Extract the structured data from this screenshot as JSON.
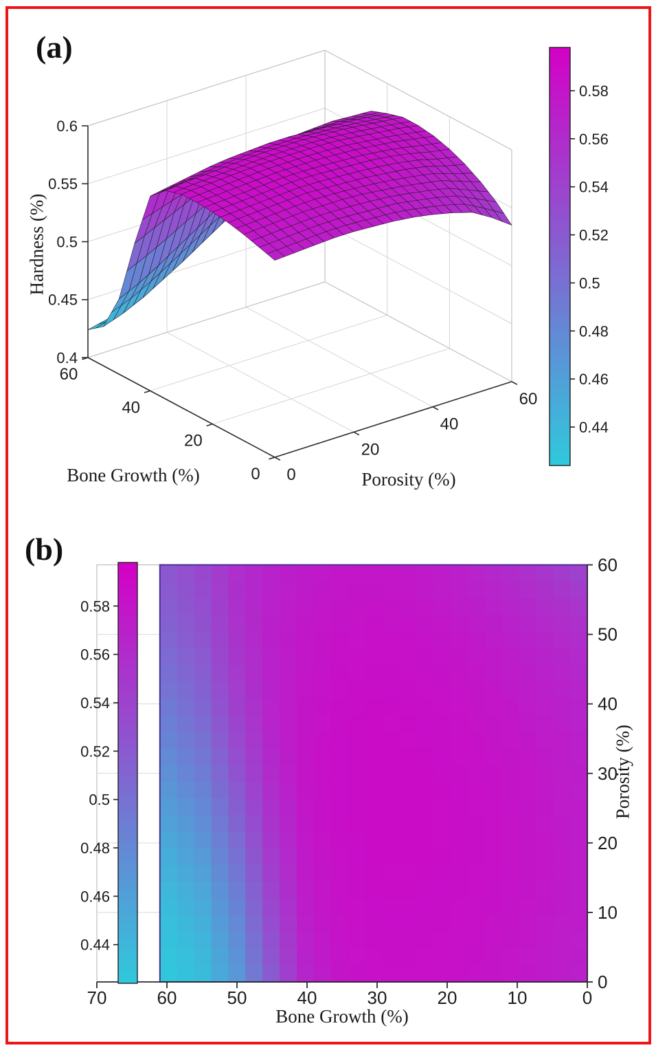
{
  "figure": {
    "background": "#ffffff",
    "border_color": "#ee1515"
  },
  "panel_a": {
    "label": "(a)",
    "zlabel": "Hardness (%)",
    "bone_growth_label": "Bone Growth (%)",
    "porosity_label": "Porosity (%)",
    "z_ticks": [
      "0.4",
      "0.45",
      "0.5",
      "0.55",
      "0.6"
    ],
    "bone_growth_ticks": [
      "0",
      "20",
      "40",
      "60"
    ],
    "porosity_ticks": [
      "0",
      "20",
      "40",
      "60"
    ],
    "colorbar_ticks": [
      "0.44",
      "0.46",
      "0.48",
      "0.5",
      "0.52",
      "0.54",
      "0.56",
      "0.58"
    ]
  },
  "panel_b": {
    "label": "(b)",
    "xlabel": "Bone Growth (%)",
    "ylabel_right": "Porosity (%)",
    "x_ticks": [
      "70",
      "60",
      "50",
      "40",
      "30",
      "20",
      "10",
      "0"
    ],
    "y_ticks_right": [
      "0",
      "10",
      "20",
      "30",
      "40",
      "50",
      "60"
    ],
    "colorbar_ticks": [
      "0.44",
      "0.46",
      "0.48",
      "0.5",
      "0.52",
      "0.54",
      "0.56",
      "0.58"
    ]
  },
  "colors": {
    "colormap_low_cyan": "#2fc9dc",
    "colormap_high_magenta": "#d400c6",
    "mesh_edge": "#1c1c1c",
    "axis_dark": "#2b2b2b",
    "grid_light": "#d5d5d5",
    "box_edge": "#c2c2c2",
    "heatmap_border": "#4a2f96"
  },
  "chart_data": [
    {
      "type": "surface",
      "title": "",
      "xlabel": "Porosity (%)",
      "ylabel": "Bone Growth (%)",
      "zlabel": "Hardness (%)",
      "bone_growth": [
        0,
        5,
        10,
        15,
        20,
        25,
        30,
        35,
        40,
        45,
        50,
        55,
        60
      ],
      "porosity": [
        0,
        5,
        10,
        15,
        20,
        25,
        30,
        35,
        40,
        45,
        50,
        55,
        60
      ],
      "zlim": [
        0.4,
        0.6
      ],
      "clim": [
        0.424,
        0.598
      ],
      "colormap": "cool (cyan to magenta)",
      "colorbar_ticks": [
        0.44,
        0.46,
        0.48,
        0.5,
        0.52,
        0.54,
        0.56,
        0.58
      ],
      "hardness_grid_rows_porosity_cols_bone_growth": [
        [
          0.57,
          0.574,
          0.578,
          0.581,
          0.583,
          0.584,
          0.584,
          0.58,
          0.568,
          0.52,
          0.465,
          0.434,
          0.424
        ],
        [
          0.571,
          0.575,
          0.579,
          0.582,
          0.584,
          0.585,
          0.585,
          0.582,
          0.571,
          0.528,
          0.473,
          0.44,
          0.428
        ],
        [
          0.572,
          0.576,
          0.58,
          0.583,
          0.585,
          0.586,
          0.586,
          0.583,
          0.574,
          0.536,
          0.483,
          0.448,
          0.434
        ],
        [
          0.573,
          0.577,
          0.581,
          0.584,
          0.586,
          0.587,
          0.587,
          0.584,
          0.577,
          0.544,
          0.494,
          0.458,
          0.442
        ],
        [
          0.573,
          0.577,
          0.581,
          0.585,
          0.587,
          0.588,
          0.588,
          0.585,
          0.579,
          0.551,
          0.505,
          0.468,
          0.452
        ],
        [
          0.572,
          0.576,
          0.581,
          0.584,
          0.587,
          0.588,
          0.588,
          0.586,
          0.58,
          0.557,
          0.516,
          0.479,
          0.462
        ],
        [
          0.571,
          0.575,
          0.58,
          0.583,
          0.586,
          0.588,
          0.588,
          0.586,
          0.581,
          0.562,
          0.526,
          0.49,
          0.473
        ],
        [
          0.569,
          0.574,
          0.578,
          0.582,
          0.585,
          0.587,
          0.588,
          0.586,
          0.581,
          0.566,
          0.535,
          0.5,
          0.483
        ],
        [
          0.566,
          0.571,
          0.576,
          0.58,
          0.584,
          0.586,
          0.587,
          0.585,
          0.58,
          0.569,
          0.543,
          0.51,
          0.493
        ],
        [
          0.562,
          0.568,
          0.573,
          0.578,
          0.582,
          0.584,
          0.585,
          0.584,
          0.579,
          0.57,
          0.549,
          0.518,
          0.502
        ],
        [
          0.557,
          0.564,
          0.57,
          0.575,
          0.579,
          0.582,
          0.583,
          0.582,
          0.578,
          0.571,
          0.554,
          0.525,
          0.511
        ],
        [
          0.547,
          0.556,
          0.564,
          0.57,
          0.575,
          0.579,
          0.581,
          0.58,
          0.576,
          0.57,
          0.557,
          0.531,
          0.518
        ],
        [
          0.535,
          0.548,
          0.558,
          0.566,
          0.572,
          0.576,
          0.578,
          0.578,
          0.574,
          0.569,
          0.558,
          0.536,
          0.524
        ]
      ]
    },
    {
      "type": "heatmap",
      "title": "",
      "xlabel": "Bone Growth (%)",
      "ylabel": "Porosity (%)",
      "x_range_reversed": [
        70,
        0
      ],
      "y_range": [
        0,
        60
      ],
      "clim": [
        0.424,
        0.598
      ],
      "colormap": "cool (cyan to magenta)",
      "colorbar_ticks": [
        0.44,
        0.46,
        0.48,
        0.5,
        0.52,
        0.54,
        0.56,
        0.58
      ],
      "x_bone_growth": [
        0,
        5,
        10,
        15,
        20,
        25,
        30,
        35,
        40,
        45,
        50,
        55,
        60
      ],
      "y_porosity": [
        0,
        5,
        10,
        15,
        20,
        25,
        30,
        35,
        40,
        45,
        50,
        55,
        60
      ],
      "values_rows_porosity_cols_bone_growth": [
        [
          0.57,
          0.574,
          0.578,
          0.581,
          0.583,
          0.584,
          0.584,
          0.58,
          0.568,
          0.52,
          0.465,
          0.434,
          0.424
        ],
        [
          0.571,
          0.575,
          0.579,
          0.582,
          0.584,
          0.585,
          0.585,
          0.582,
          0.571,
          0.528,
          0.473,
          0.44,
          0.428
        ],
        [
          0.572,
          0.576,
          0.58,
          0.583,
          0.585,
          0.586,
          0.586,
          0.583,
          0.574,
          0.536,
          0.483,
          0.448,
          0.434
        ],
        [
          0.573,
          0.577,
          0.581,
          0.584,
          0.586,
          0.587,
          0.587,
          0.584,
          0.577,
          0.544,
          0.494,
          0.458,
          0.442
        ],
        [
          0.573,
          0.577,
          0.581,
          0.585,
          0.587,
          0.588,
          0.588,
          0.585,
          0.579,
          0.551,
          0.505,
          0.468,
          0.452
        ],
        [
          0.572,
          0.576,
          0.581,
          0.584,
          0.587,
          0.588,
          0.588,
          0.586,
          0.58,
          0.557,
          0.516,
          0.479,
          0.462
        ],
        [
          0.571,
          0.575,
          0.58,
          0.583,
          0.586,
          0.588,
          0.588,
          0.586,
          0.581,
          0.562,
          0.526,
          0.49,
          0.473
        ],
        [
          0.569,
          0.574,
          0.578,
          0.582,
          0.585,
          0.587,
          0.588,
          0.586,
          0.581,
          0.566,
          0.535,
          0.5,
          0.483
        ],
        [
          0.566,
          0.571,
          0.576,
          0.58,
          0.584,
          0.586,
          0.587,
          0.585,
          0.58,
          0.569,
          0.543,
          0.51,
          0.493
        ],
        [
          0.562,
          0.568,
          0.573,
          0.578,
          0.582,
          0.584,
          0.585,
          0.584,
          0.579,
          0.57,
          0.549,
          0.518,
          0.502
        ],
        [
          0.557,
          0.564,
          0.57,
          0.575,
          0.579,
          0.582,
          0.583,
          0.582,
          0.578,
          0.571,
          0.554,
          0.525,
          0.511
        ],
        [
          0.547,
          0.556,
          0.564,
          0.57,
          0.575,
          0.579,
          0.581,
          0.58,
          0.576,
          0.57,
          0.557,
          0.531,
          0.518
        ],
        [
          0.535,
          0.548,
          0.558,
          0.566,
          0.572,
          0.576,
          0.578,
          0.578,
          0.574,
          0.569,
          0.558,
          0.536,
          0.524
        ]
      ]
    }
  ]
}
